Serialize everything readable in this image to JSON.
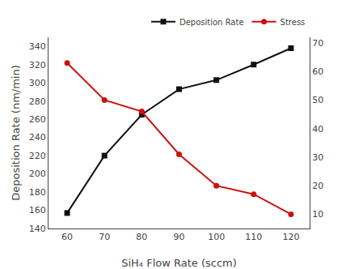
{
  "chart_data": {
    "type": "line",
    "x": [
      60,
      70,
      80,
      90,
      100,
      110,
      120
    ],
    "xlabel": "SiH₄ Flow Rate (sccm)",
    "ylabel": "Deposition Rate (nm/min)",
    "xlim": [
      55,
      125
    ],
    "xticks": [
      60,
      70,
      80,
      90,
      100,
      110,
      120
    ],
    "ylim": [
      140,
      350
    ],
    "yticks": [
      140,
      160,
      180,
      200,
      220,
      240,
      260,
      280,
      300,
      320,
      340
    ],
    "y2lim": [
      5,
      72
    ],
    "y2ticks": [
      10,
      20,
      30,
      40,
      50,
      60,
      70
    ],
    "grid": false,
    "legend": "upper right",
    "series": [
      {
        "name": "Deposition Rate",
        "color": "#111111",
        "marker": "square",
        "values": [
          157,
          220,
          265,
          293,
          303,
          320,
          338
        ]
      },
      {
        "name": "Stress",
        "color": "#cc1111",
        "marker": "circle",
        "axis": "y2",
        "values": [
          63,
          50,
          46,
          31,
          20,
          17,
          10
        ]
      }
    ]
  }
}
